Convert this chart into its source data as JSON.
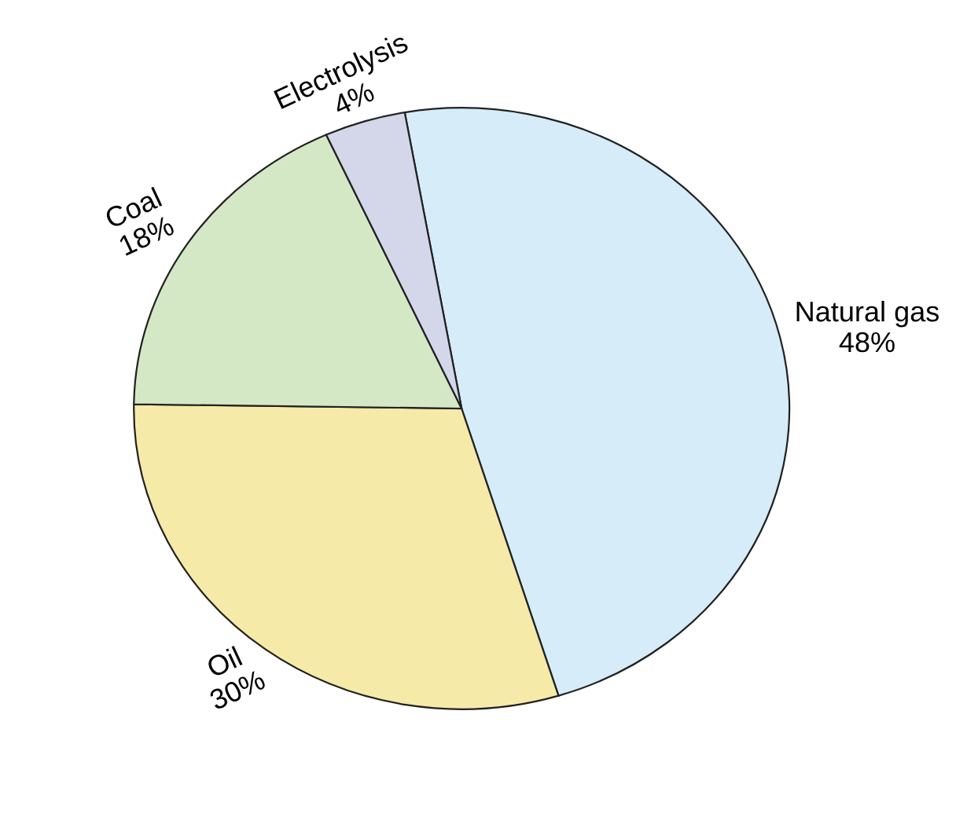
{
  "chart_data": {
    "type": "pie",
    "categories": [
      "Natural gas",
      "Oil",
      "Coal",
      "Electrolysis"
    ],
    "values": [
      48,
      30,
      18,
      4
    ],
    "colors": [
      "#d6ecf8",
      "#f5eaa8",
      "#d5e8c6",
      "#d4d6ea"
    ],
    "value_labels": [
      "48%",
      "30%",
      "18%",
      "4%"
    ]
  }
}
